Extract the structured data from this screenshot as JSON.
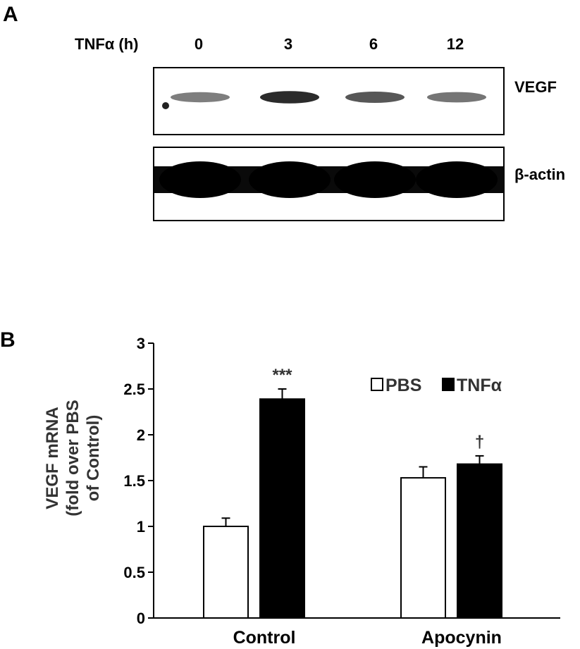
{
  "panel_a": {
    "label": "A",
    "row_label": "TNFα (h)",
    "timepoints": [
      "0",
      "3",
      "6",
      "12"
    ],
    "blots": [
      {
        "name": "VEGF",
        "band_intensity": [
          0.55,
          0.95,
          0.75,
          0.6
        ]
      },
      {
        "name": "β-actin",
        "band_intensity": [
          1,
          1,
          1,
          1
        ]
      }
    ]
  },
  "chart_data": {
    "type": "bar",
    "panel_label": "B",
    "categories": [
      "Control",
      "Apocynin"
    ],
    "ylabel_lines": [
      "VEGF mRNA",
      "(fold over PBS",
      "of Control)"
    ],
    "ylim": [
      0,
      3
    ],
    "yticks": [
      "0",
      "0.5",
      "1",
      "1.5",
      "2",
      "2.5",
      "3"
    ],
    "grid": false,
    "legend_position": "top-right",
    "series": [
      {
        "name": "PBS",
        "fill": "#ffffff",
        "values": [
          1.0,
          1.53
        ],
        "errors": [
          0.09,
          0.12
        ]
      },
      {
        "name": "TNFα",
        "fill": "#000000",
        "values": [
          2.39,
          1.68
        ],
        "errors": [
          0.11,
          0.09
        ]
      }
    ],
    "annotations": [
      {
        "text": "***",
        "series": 1,
        "category": 0
      },
      {
        "text": "†",
        "series": 1,
        "category": 1
      }
    ]
  }
}
